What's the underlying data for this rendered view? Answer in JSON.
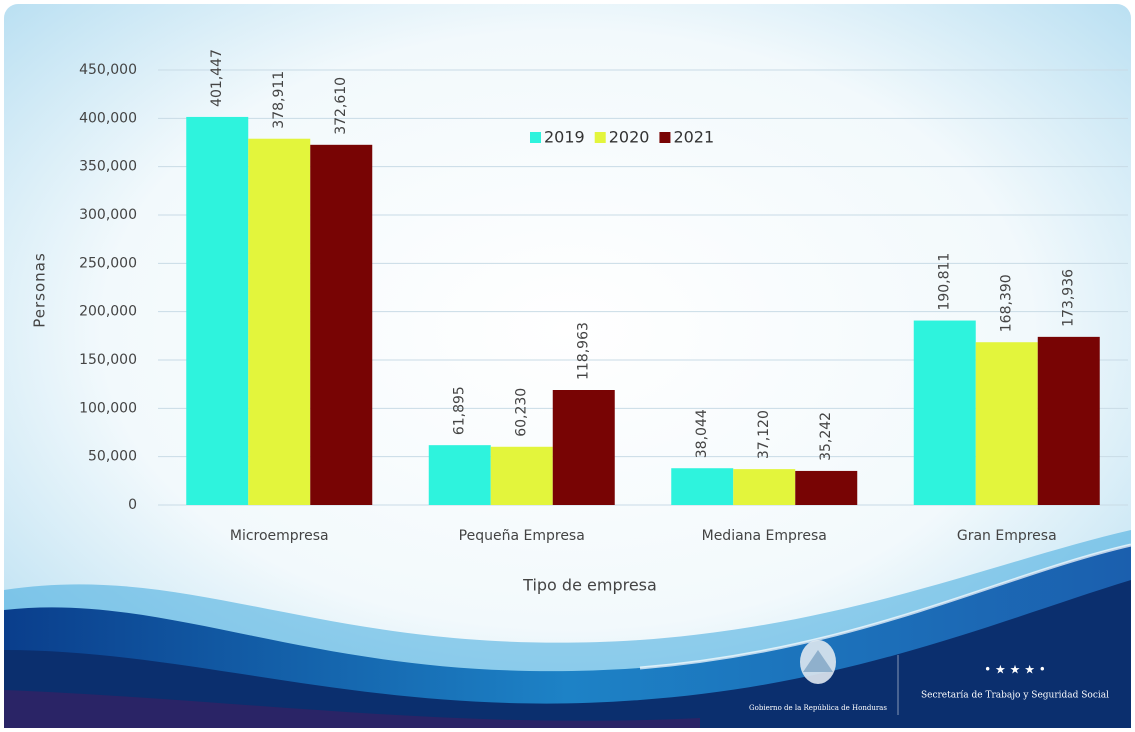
{
  "chart_data": {
    "type": "bar",
    "x_label": "Tipo de empresa",
    "y_label": "Personas",
    "categories": [
      "Microempresa",
      "Pequeña Empresa",
      "Mediana Empresa",
      "Gran Empresa"
    ],
    "series": [
      {
        "name": "2019",
        "color": "#2ef3dd",
        "values": [
          401447,
          61895,
          38044,
          190811
        ],
        "value_labels": [
          "401,447",
          "61,895",
          "38,044",
          "190,811"
        ]
      },
      {
        "name": "2020",
        "color": "#e3f53c",
        "values": [
          378911,
          60230,
          37120,
          168390
        ],
        "value_labels": [
          "378,911",
          "60,230",
          "37,120",
          "168,390"
        ]
      },
      {
        "name": "2021",
        "color": "#780404",
        "values": [
          372610,
          118963,
          35242,
          173936
        ],
        "value_labels": [
          "372,610",
          "118,963",
          "35,242",
          "173,936"
        ]
      }
    ],
    "ylim": [
      0,
      450000
    ],
    "yticks": [
      0,
      {
        "value": 50000,
        "label": "50,000"
      },
      {
        "value": 100000,
        "label": "100,000"
      },
      {
        "value": 150000,
        "label": "150,000"
      },
      {
        "value": 200000,
        "label": "200,000"
      },
      {
        "value": 250000,
        "label": "250,000"
      },
      {
        "value": 300000,
        "label": "300,000"
      },
      {
        "value": 350000,
        "label": "350,000"
      },
      {
        "value": 400000,
        "label": "400,000"
      },
      {
        "value": 450000,
        "label": "450,000"
      }
    ],
    "grid": true,
    "legend": "top"
  },
  "footer": {
    "government": "Gobierno de la República de Honduras",
    "ministry": "Secretaría de Trabajo y Seguridad Social"
  }
}
